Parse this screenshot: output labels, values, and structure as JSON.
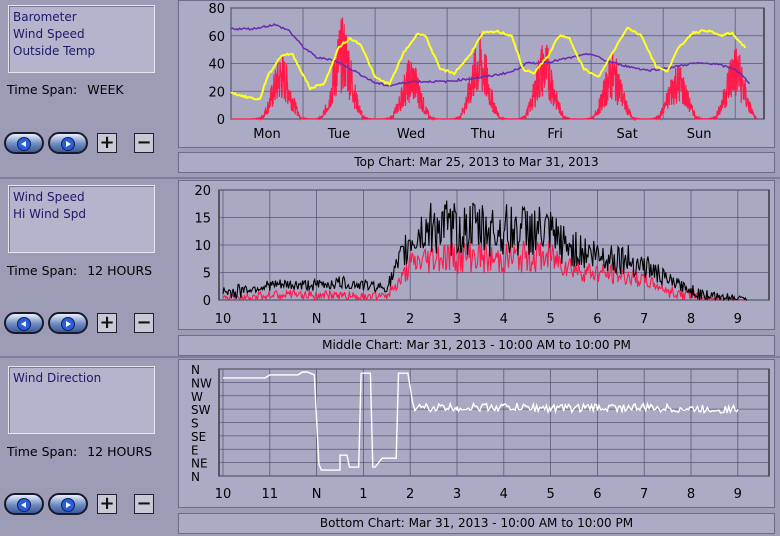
{
  "panels": [
    {
      "legend": [
        "Barometer",
        "Wind Speed",
        "Outside Temp"
      ],
      "time_span_label": "Time Span:",
      "time_span_value": "WEEK",
      "caption": "Top Chart:  Mar 25, 2013  to  Mar 31, 2013"
    },
    {
      "legend": [
        "Wind Speed",
        "Hi Wind Spd"
      ],
      "time_span_label": "Time Span:",
      "time_span_value": "12 HOURS",
      "caption": "Middle Chart:  Mar 31, 2013 - 10:00 AM  to  10:00 PM"
    },
    {
      "legend": [
        "Wind Direction"
      ],
      "time_span_label": "Time Span:",
      "time_span_value": "12 HOURS",
      "caption": "Bottom Chart:  Mar 31, 2013 - 10:00 AM  to  10:00 PM"
    }
  ],
  "controls": {
    "plus": "+",
    "minus": "−"
  },
  "colors": {
    "wind_speed": "#ff1a4a",
    "barometer": "#6a2bb0",
    "outside_temp": "#ffff20",
    "hi_wind": "#000000",
    "wind_dir": "#ffffff"
  },
  "chart_data": [
    {
      "type": "line",
      "x_ticks": [
        "Mon",
        "Tue",
        "Wed",
        "Thu",
        "Fri",
        "Sat",
        "Sun"
      ],
      "ylim": [
        0,
        80
      ],
      "y_ticks": [
        0,
        20,
        40,
        60,
        80
      ],
      "grid": true,
      "series": [
        {
          "name": "Barometer",
          "color": "#6a2bb0",
          "x": [
            0,
            0.3,
            0.6,
            0.8,
            1.0,
            1.2,
            1.4,
            1.6,
            1.8,
            2.0,
            2.2,
            2.5,
            2.8,
            3.0,
            3.3,
            3.6,
            3.9,
            4.1,
            4.4,
            4.7,
            5.0,
            5.2,
            5.5,
            5.8,
            6.1,
            6.4,
            6.7,
            7.0,
            7.2
          ],
          "values": [
            65,
            65,
            68,
            64,
            52,
            44,
            43,
            38,
            32,
            26,
            24,
            27,
            27,
            27,
            29,
            31,
            34,
            40,
            41,
            44,
            47,
            42,
            38,
            35,
            37,
            40,
            40,
            36,
            26
          ]
        },
        {
          "name": "Outside Temp",
          "color": "#ffff20",
          "x": [
            0,
            0.2,
            0.4,
            0.5,
            0.7,
            0.85,
            1.0,
            1.1,
            1.3,
            1.5,
            1.65,
            1.8,
            2.0,
            2.2,
            2.4,
            2.6,
            2.7,
            2.9,
            3.1,
            3.3,
            3.5,
            3.7,
            3.9,
            4.05,
            4.2,
            4.4,
            4.55,
            4.7,
            4.9,
            5.1,
            5.3,
            5.5,
            5.7,
            5.9,
            6.05,
            6.2,
            6.4,
            6.6,
            6.8,
            6.95,
            7.15
          ],
          "values": [
            19,
            16,
            14,
            30,
            46,
            47,
            32,
            22,
            26,
            52,
            58,
            54,
            30,
            25,
            48,
            62,
            60,
            36,
            33,
            45,
            62,
            63,
            60,
            36,
            33,
            45,
            60,
            58,
            36,
            30,
            48,
            66,
            60,
            38,
            34,
            50,
            62,
            64,
            60,
            62,
            51
          ]
        }
      ],
      "spikes": {
        "name": "Wind Speed",
        "color": "#ff1a4a",
        "centers": [
          0.7,
          1.55,
          2.5,
          3.45,
          4.35,
          5.3,
          6.2,
          7.0
        ],
        "peaks": [
          48,
          74,
          45,
          62,
          58,
          48,
          42,
          55
        ]
      }
    },
    {
      "type": "line",
      "x_ticks": [
        "10",
        "11",
        "N",
        "1",
        "2",
        "3",
        "4",
        "5",
        "6",
        "7",
        "8",
        "9",
        "1"
      ],
      "ylim": [
        0,
        20
      ],
      "y_ticks": [
        0,
        5,
        10,
        15,
        20
      ],
      "grid": true,
      "series": [
        {
          "name": "Wind Speed",
          "color": "#ff1a4a",
          "x": [
            0,
            0.5,
            1.0,
            1.5,
            2.0,
            2.5,
            3.0,
            3.5,
            3.8,
            4.0,
            4.3,
            4.6,
            5.0,
            5.4,
            5.8,
            6.2,
            6.6,
            7.0,
            7.3,
            7.6,
            8.0,
            8.5,
            9.0,
            9.5,
            10.0,
            10.4,
            10.8,
            11.2
          ],
          "values": [
            0.5,
            0.8,
            1.0,
            1.2,
            1.0,
            1.1,
            0.9,
            0.8,
            4,
            7,
            8,
            9,
            8.5,
            9,
            8,
            8.5,
            8.8,
            8.6,
            7.5,
            6,
            5.5,
            5,
            4,
            2,
            1.2,
            0.4,
            0.2,
            0
          ]
        },
        {
          "name": "Hi Wind Spd",
          "color": "#000000",
          "x": [
            0,
            0.5,
            1.0,
            1.5,
            2.0,
            2.5,
            3.0,
            3.5,
            3.8,
            4.0,
            4.3,
            4.6,
            5.0,
            5.4,
            5.8,
            6.2,
            6.6,
            7.0,
            7.3,
            7.6,
            8.0,
            8.5,
            9.0,
            9.5,
            10.0,
            10.4,
            10.8,
            11.2
          ],
          "values": [
            1.5,
            2,
            3,
            3,
            3,
            3.5,
            3,
            2.5,
            8,
            12,
            14,
            15,
            14,
            14.5,
            14,
            14,
            14.2,
            13,
            11,
            10,
            9,
            8.5,
            7,
            4,
            2,
            1,
            0.8,
            0.2
          ]
        }
      ]
    },
    {
      "type": "line",
      "x_ticks": [
        "10",
        "11",
        "N",
        "1",
        "2",
        "3",
        "4",
        "5",
        "6",
        "7",
        "8",
        "9",
        "1"
      ],
      "y_ticks": [
        "N",
        "NW",
        "W",
        "SW",
        "S",
        "SE",
        "E",
        "NE",
        "N"
      ],
      "ylim": [
        0,
        360
      ],
      "grid": true,
      "series": [
        {
          "name": "Wind Direction",
          "color": "#ffffff",
          "x": [
            0,
            0.9,
            1.0,
            1.1,
            1.6,
            1.7,
            1.8,
            1.95,
            2.05,
            2.1,
            2.5,
            2.5,
            2.65,
            2.7,
            2.9,
            2.95,
            3.15,
            3.2,
            3.25,
            3.4,
            3.7,
            3.75,
            3.95,
            4.05,
            4.1,
            4.2,
            4.4,
            5.0,
            6.0,
            7.0,
            8.0,
            9.0,
            10.0,
            11.0
          ],
          "values": [
            330,
            330,
            340,
            340,
            340,
            350,
            350,
            340,
            40,
            20,
            20,
            70,
            70,
            30,
            30,
            346,
            346,
            30,
            30,
            60,
            60,
            346,
            346,
            250,
            220,
            230,
            230,
            230,
            232,
            228,
            230,
            230,
            225,
            225
          ]
        }
      ]
    }
  ]
}
